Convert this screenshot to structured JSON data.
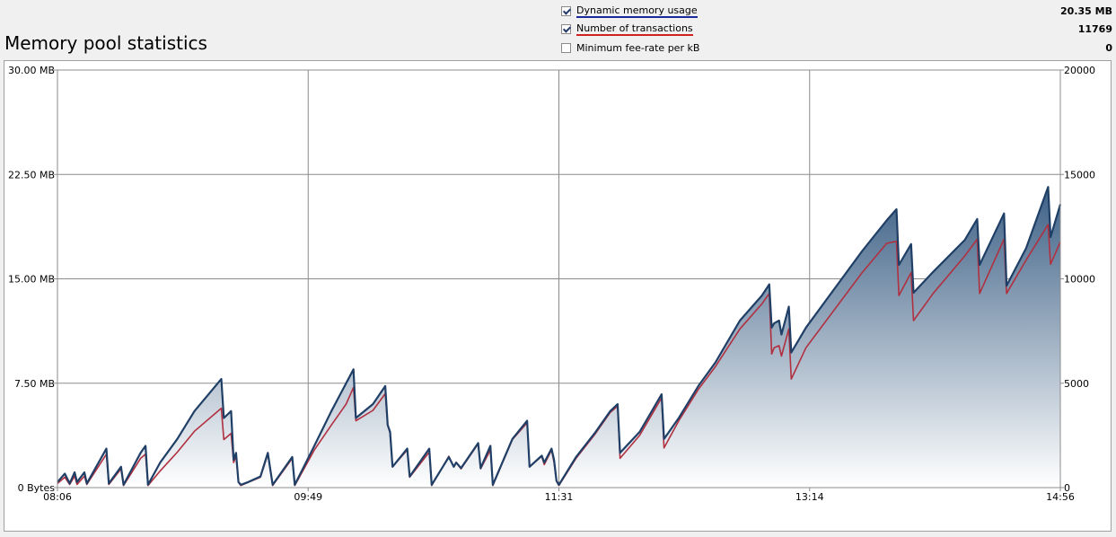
{
  "header": {
    "title": "Memory pool statistics",
    "legend": [
      {
        "label": "Dynamic memory usage",
        "checked": true,
        "value": "20.35 MB",
        "underline_color": "#1a2a9a"
      },
      {
        "label": "Number of transactions",
        "checked": true,
        "value": "11769",
        "underline_color": "#d02020"
      },
      {
        "label": "Minimum fee-rate per kB",
        "checked": false,
        "value": "0",
        "underline_color": ""
      }
    ]
  },
  "chart_data": {
    "type": "area",
    "x_ticks": [
      "08:06",
      "09:49",
      "11:31",
      "13:14",
      "14:56"
    ],
    "y_left_ticks": [
      "0 Bytes",
      "7.50 MB",
      "15.00 MB",
      "22.50 MB",
      "30.00 MB"
    ],
    "y_right_ticks": [
      "0",
      "5000",
      "10000",
      "15000",
      "20000"
    ],
    "x_range": [
      "08:06",
      "14:56"
    ],
    "y_left_range_mb": [
      0,
      30
    ],
    "y_right_range": [
      0,
      20000
    ],
    "grid": true,
    "colors": {
      "memory_line": "#1f3f66",
      "transactions_line": "#b03040",
      "fill_top": "#3e6186",
      "fill_bottom": "#ffffff"
    },
    "series": [
      {
        "name": "Dynamic memory usage",
        "unit": "MB",
        "points": [
          [
            "08:06",
            0.4
          ],
          [
            "08:09",
            1.0
          ],
          [
            "08:11",
            0.3
          ],
          [
            "08:13",
            1.1
          ],
          [
            "08:14",
            0.4
          ],
          [
            "08:17",
            1.1
          ],
          [
            "08:18",
            0.3
          ],
          [
            "08:26",
            2.8
          ],
          [
            "08:27",
            0.3
          ],
          [
            "08:32",
            1.5
          ],
          [
            "08:33",
            0.2
          ],
          [
            "08:40",
            2.5
          ],
          [
            "08:42",
            3.0
          ],
          [
            "08:43",
            0.2
          ],
          [
            "08:48",
            1.8
          ],
          [
            "08:55",
            3.5
          ],
          [
            "09:02",
            5.5
          ],
          [
            "09:13",
            7.8
          ],
          [
            "09:14",
            5.0
          ],
          [
            "09:17",
            5.5
          ],
          [
            "09:18",
            2.0
          ],
          [
            "09:19",
            2.5
          ],
          [
            "09:20",
            0.4
          ],
          [
            "09:21",
            0.2
          ],
          [
            "09:24",
            0.4
          ],
          [
            "09:29",
            0.8
          ],
          [
            "09:32",
            2.5
          ],
          [
            "09:34",
            0.2
          ],
          [
            "09:42",
            2.2
          ],
          [
            "09:43",
            0.2
          ],
          [
            "09:51",
            3.0
          ],
          [
            "09:58",
            5.5
          ],
          [
            "10:04",
            7.5
          ],
          [
            "10:07",
            8.5
          ],
          [
            "10:08",
            5.0
          ],
          [
            "10:15",
            6.0
          ],
          [
            "10:20",
            7.3
          ],
          [
            "10:21",
            4.5
          ],
          [
            "10:22",
            4.0
          ],
          [
            "10:23",
            1.5
          ],
          [
            "10:29",
            2.8
          ],
          [
            "10:30",
            0.8
          ],
          [
            "10:38",
            2.8
          ],
          [
            "10:39",
            0.2
          ],
          [
            "10:46",
            2.2
          ],
          [
            "10:48",
            1.5
          ],
          [
            "10:49",
            1.8
          ],
          [
            "10:51",
            1.4
          ],
          [
            "10:58",
            3.2
          ],
          [
            "10:59",
            1.4
          ],
          [
            "11:03",
            3.0
          ],
          [
            "11:04",
            0.2
          ],
          [
            "11:12",
            3.5
          ],
          [
            "11:18",
            4.8
          ],
          [
            "11:19",
            1.5
          ],
          [
            "11:24",
            2.3
          ],
          [
            "11:25",
            1.8
          ],
          [
            "11:28",
            2.8
          ],
          [
            "11:29",
            2.0
          ],
          [
            "11:30",
            0.5
          ],
          [
            "11:31",
            0.2
          ],
          [
            "11:38",
            2.2
          ],
          [
            "11:46",
            4.0
          ],
          [
            "11:52",
            5.5
          ],
          [
            "11:55",
            6.0
          ],
          [
            "11:56",
            2.5
          ],
          [
            "12:04",
            4.0
          ],
          [
            "12:08",
            5.2
          ],
          [
            "12:13",
            6.7
          ],
          [
            "12:14",
            3.5
          ],
          [
            "12:20",
            5.0
          ],
          [
            "12:28",
            7.3
          ],
          [
            "12:35",
            9.0
          ],
          [
            "12:45",
            12.0
          ],
          [
            "12:54",
            13.8
          ],
          [
            "12:57",
            14.6
          ],
          [
            "12:58",
            11.5
          ],
          [
            "12:59",
            11.8
          ],
          [
            "13:01",
            12.0
          ],
          [
            "13:02",
            11.0
          ],
          [
            "13:05",
            13.0
          ],
          [
            "13:06",
            9.7
          ],
          [
            "13:12",
            11.5
          ],
          [
            "13:35",
            17.0
          ],
          [
            "13:45",
            19.2
          ],
          [
            "13:49",
            20.0
          ],
          [
            "13:50",
            16.0
          ],
          [
            "13:55",
            17.5
          ],
          [
            "13:56",
            14.0
          ],
          [
            "14:04",
            15.5
          ],
          [
            "14:17",
            17.8
          ],
          [
            "14:22",
            19.3
          ],
          [
            "14:23",
            16.0
          ],
          [
            "14:33",
            19.7
          ],
          [
            "14:34",
            14.5
          ],
          [
            "14:42",
            17.2
          ],
          [
            "14:51",
            21.6
          ],
          [
            "14:52",
            18.0
          ],
          [
            "14:56",
            20.35
          ]
        ]
      },
      {
        "name": "Number of transactions",
        "points": [
          [
            "08:06",
            200
          ],
          [
            "08:09",
            500
          ],
          [
            "08:11",
            150
          ],
          [
            "08:13",
            550
          ],
          [
            "08:14",
            150
          ],
          [
            "08:17",
            550
          ],
          [
            "08:18",
            150
          ],
          [
            "08:26",
            1600
          ],
          [
            "08:27",
            150
          ],
          [
            "08:32",
            900
          ],
          [
            "08:33",
            100
          ],
          [
            "08:40",
            1400
          ],
          [
            "08:42",
            1600
          ],
          [
            "08:43",
            100
          ],
          [
            "08:48",
            800
          ],
          [
            "08:55",
            1700
          ],
          [
            "09:02",
            2700
          ],
          [
            "09:13",
            3800
          ],
          [
            "09:14",
            2300
          ],
          [
            "09:17",
            2600
          ],
          [
            "09:18",
            1200
          ],
          [
            "09:19",
            1500
          ],
          [
            "09:20",
            250
          ],
          [
            "09:21",
            100
          ],
          [
            "09:24",
            250
          ],
          [
            "09:29",
            500
          ],
          [
            "09:32",
            1600
          ],
          [
            "09:34",
            100
          ],
          [
            "09:42",
            1400
          ],
          [
            "09:43",
            100
          ],
          [
            "09:51",
            1800
          ],
          [
            "09:58",
            3000
          ],
          [
            "10:04",
            4000
          ],
          [
            "10:07",
            4800
          ],
          [
            "10:08",
            3200
          ],
          [
            "10:15",
            3700
          ],
          [
            "10:20",
            4500
          ],
          [
            "10:21",
            3000
          ],
          [
            "10:22",
            2600
          ],
          [
            "10:23",
            1000
          ],
          [
            "10:29",
            1800
          ],
          [
            "10:30",
            500
          ],
          [
            "10:38",
            1700
          ],
          [
            "10:39",
            100
          ],
          [
            "10:46",
            1500
          ],
          [
            "10:48",
            1000
          ],
          [
            "10:49",
            1200
          ],
          [
            "10:51",
            900
          ],
          [
            "10:58",
            2100
          ],
          [
            "10:59",
            900
          ],
          [
            "11:03",
            1800
          ],
          [
            "11:04",
            100
          ],
          [
            "11:12",
            2300
          ],
          [
            "11:18",
            3100
          ],
          [
            "11:19",
            1000
          ],
          [
            "11:24",
            1500
          ],
          [
            "11:25",
            1100
          ],
          [
            "11:28",
            1800
          ],
          [
            "11:29",
            1200
          ],
          [
            "11:30",
            300
          ],
          [
            "11:31",
            100
          ],
          [
            "11:38",
            1400
          ],
          [
            "11:46",
            2600
          ],
          [
            "11:52",
            3600
          ],
          [
            "11:55",
            3900
          ],
          [
            "11:56",
            1400
          ],
          [
            "12:04",
            2500
          ],
          [
            "12:08",
            3300
          ],
          [
            "12:13",
            4300
          ],
          [
            "12:14",
            1900
          ],
          [
            "12:20",
            3200
          ],
          [
            "12:28",
            4700
          ],
          [
            "12:35",
            5800
          ],
          [
            "12:45",
            7600
          ],
          [
            "12:54",
            8800
          ],
          [
            "12:57",
            9300
          ],
          [
            "12:58",
            6400
          ],
          [
            "12:59",
            6700
          ],
          [
            "13:01",
            6800
          ],
          [
            "13:02",
            6300
          ],
          [
            "13:05",
            7600
          ],
          [
            "13:06",
            5200
          ],
          [
            "13:12",
            6700
          ],
          [
            "13:35",
            10300
          ],
          [
            "13:45",
            11700
          ],
          [
            "13:49",
            11800
          ],
          [
            "13:50",
            9200
          ],
          [
            "13:55",
            10300
          ],
          [
            "13:56",
            8000
          ],
          [
            "14:04",
            9300
          ],
          [
            "14:17",
            11100
          ],
          [
            "14:22",
            11900
          ],
          [
            "14:23",
            9300
          ],
          [
            "14:33",
            11900
          ],
          [
            "14:34",
            9300
          ],
          [
            "14:42",
            10900
          ],
          [
            "14:51",
            12600
          ],
          [
            "14:52",
            10700
          ],
          [
            "14:56",
            11769
          ]
        ]
      }
    ]
  }
}
